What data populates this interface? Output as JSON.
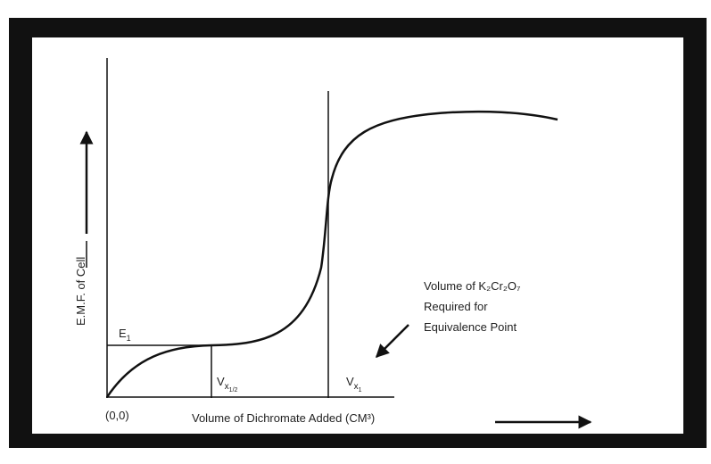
{
  "y_axis_label": "E.M.F. of Cell",
  "x_axis_label": "Volume of Dichromate Added (CM³)",
  "origin_label": "(0,0)",
  "e1_label": {
    "main": "E",
    "sub": "1"
  },
  "v_half_label": {
    "main": "V",
    "sub": "x",
    "subsub": "1/2"
  },
  "v_eq_label": {
    "main": "V",
    "sub": "x",
    "subsub": "1"
  },
  "annotation": [
    "Volume of K₂Cr₂O₇",
    "Required for",
    "Equivalence Point"
  ]
}
